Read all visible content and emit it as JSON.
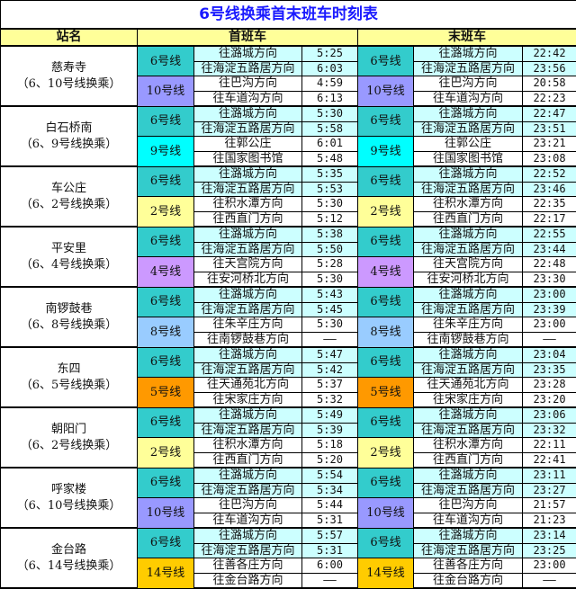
{
  "title": "6号线换乘首末班车时刻表",
  "headers": {
    "station": "站名",
    "first": "首班车",
    "last": "末班车"
  },
  "line_colors": {
    "6号线": "#33cccc",
    "10号线": "#9999ff",
    "9号线": "#00ffff",
    "2号线": "#ffff99",
    "4号线": "#cc99ff",
    "8号线": "#99ccff",
    "5号线": "#ff9900",
    "14号线": "#ffcc00"
  },
  "stations": [
    {
      "name": "慈寿寺",
      "note": "（6、10号线换乘）",
      "lines": [
        {
          "line": "6号线",
          "dirs": [
            {
              "dir": "往潞城方向",
              "first": "5:25",
              "last": "22:42"
            },
            {
              "dir": "往海淀五路居方向",
              "first": "6:03",
              "last": "23:56"
            }
          ]
        },
        {
          "line": "10号线",
          "dirs": [
            {
              "dir": "往巴沟方向",
              "first": "4:59",
              "last": "20:58"
            },
            {
              "dir": "往车道沟方向",
              "first": "6:13",
              "last": "22:23"
            }
          ]
        }
      ]
    },
    {
      "name": "白石桥南",
      "note": "（6、9号线换乘）",
      "lines": [
        {
          "line": "6号线",
          "dirs": [
            {
              "dir": "往潞城方向",
              "first": "5:30",
              "last": "22:47"
            },
            {
              "dir": "往海淀五路居方向",
              "first": "5:58",
              "last": "23:51"
            }
          ]
        },
        {
          "line": "9号线",
          "dirs": [
            {
              "dir": "往郭公庄",
              "first": "6:01",
              "last": "23:21"
            },
            {
              "dir": "往国家图书馆",
              "first": "5:48",
              "last": "23:08"
            }
          ]
        }
      ]
    },
    {
      "name": "车公庄",
      "note": "（6、2号线换乘）",
      "lines": [
        {
          "line": "6号线",
          "dirs": [
            {
              "dir": "往潞城方向",
              "first": "5:35",
              "last": "22:52"
            },
            {
              "dir": "往海淀五路居方向",
              "first": "5:53",
              "last": "23:46"
            }
          ]
        },
        {
          "line": "2号线",
          "dirs": [
            {
              "dir": "往积水潭方向",
              "first": "5:30",
              "last": "22:35"
            },
            {
              "dir": "往西直门方向",
              "first": "5:12",
              "last": "22:17"
            }
          ]
        }
      ]
    },
    {
      "name": "平安里",
      "note": "（6、4号线换乘）",
      "lines": [
        {
          "line": "6号线",
          "dirs": [
            {
              "dir": "往潞城方向",
              "first": "5:38",
              "last": "22:55"
            },
            {
              "dir": "往海淀五路居方向",
              "first": "5:50",
              "last": "23:44"
            }
          ]
        },
        {
          "line": "4号线",
          "dirs": [
            {
              "dir": "往天宫院方向",
              "first": "5:28",
              "last": "22:48"
            },
            {
              "dir": "往安河桥北方向",
              "first": "5:30",
              "last": "23:30"
            }
          ]
        }
      ]
    },
    {
      "name": "南锣鼓巷",
      "note": "（6、8号线换乘）",
      "lines": [
        {
          "line": "6号线",
          "dirs": [
            {
              "dir": "往潞城方向",
              "first": "5:43",
              "last": "23:00"
            },
            {
              "dir": "往海淀五路居方向",
              "first": "5:45",
              "last": "23:39"
            }
          ]
        },
        {
          "line": "8号线",
          "dirs": [
            {
              "dir": "往朱辛庄方向",
              "first": "5:30",
              "last": "23:00"
            },
            {
              "dir": "往南锣鼓巷方向",
              "first": "——",
              "last": "——"
            }
          ]
        }
      ]
    },
    {
      "name": "东四",
      "note": "（6、5号线换乘）",
      "lines": [
        {
          "line": "6号线",
          "dirs": [
            {
              "dir": "往潞城方向",
              "first": "5:47",
              "last": "23:04"
            },
            {
              "dir": "往海淀五路居方向",
              "first": "5:42",
              "last": "23:35"
            }
          ]
        },
        {
          "line": "5号线",
          "dirs": [
            {
              "dir": "往天通苑北方向",
              "first": "5:37",
              "last": "23:28"
            },
            {
              "dir": "往宋家庄方向",
              "first": "5:32",
              "last": "23:20"
            }
          ]
        }
      ]
    },
    {
      "name": "朝阳门",
      "note": "（6、2号线换乘）",
      "lines": [
        {
          "line": "6号线",
          "dirs": [
            {
              "dir": "往潞城方向",
              "first": "5:49",
              "last": "23:06"
            },
            {
              "dir": "往海淀五路居方向",
              "first": "5:39",
              "last": "23:32"
            }
          ]
        },
        {
          "line": "2号线",
          "dirs": [
            {
              "dir": "往积水潭方向",
              "first": "5:18",
              "last": "22:11"
            },
            {
              "dir": "往西直门方向",
              "first": "5:20",
              "last": "22:41"
            }
          ]
        }
      ]
    },
    {
      "name": "呼家楼",
      "note": "（6、10号线换乘）",
      "lines": [
        {
          "line": "6号线",
          "dirs": [
            {
              "dir": "往潞城方向",
              "first": "5:54",
              "last": "23:11"
            },
            {
              "dir": "往海淀五路居方向",
              "first": "5:34",
              "last": "23:27"
            }
          ]
        },
        {
          "line": "10号线",
          "dirs": [
            {
              "dir": "往巴沟方向",
              "first": "5:44",
              "last": "21:57"
            },
            {
              "dir": "往车道沟方向",
              "first": "5:31",
              "last": "21:23"
            }
          ]
        }
      ]
    },
    {
      "name": "金台路",
      "note": "（6、14号线换乘）",
      "lines": [
        {
          "line": "6号线",
          "dirs": [
            {
              "dir": "往潞城方向",
              "first": "5:57",
              "last": "23:14"
            },
            {
              "dir": "往海淀五路居方向",
              "first": "5:31",
              "last": "23:25"
            }
          ]
        },
        {
          "line": "14号线",
          "dirs": [
            {
              "dir": "往善各庄方向",
              "first": "6:00",
              "last": "23:00"
            },
            {
              "dir": "往金台路方向",
              "first": "——",
              "last": "——"
            }
          ]
        }
      ]
    }
  ]
}
